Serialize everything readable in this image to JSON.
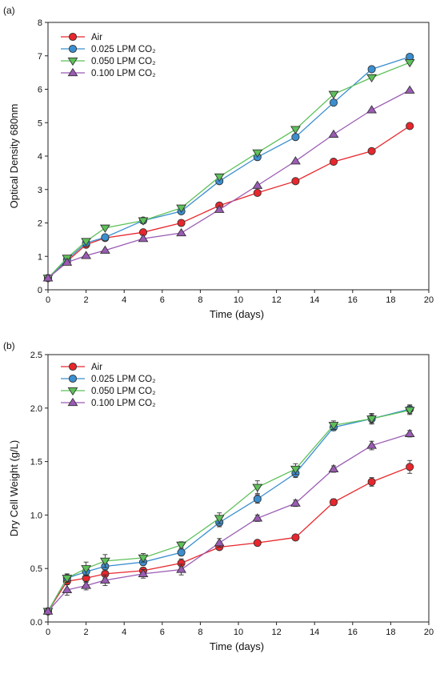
{
  "chart_data": [
    {
      "panel_label": "(a)",
      "type": "line",
      "xlabel": "Time (days)",
      "ylabel": "Optical Density 680nm",
      "xlim": [
        0,
        20
      ],
      "ylim": [
        0,
        8
      ],
      "x_ticks": [
        0,
        2,
        4,
        6,
        8,
        10,
        12,
        14,
        16,
        18,
        20
      ],
      "y_ticks": [
        0,
        1,
        2,
        3,
        4,
        5,
        6,
        7,
        8
      ],
      "grid": false,
      "legend_position": "top-left",
      "x": [
        0,
        1,
        2,
        3,
        5,
        7,
        9,
        11,
        13,
        15,
        17,
        19
      ],
      "series": [
        {
          "name": "Air",
          "color": "#e8262c",
          "marker": "circle",
          "values": [
            0.35,
            0.85,
            1.35,
            1.55,
            1.72,
            2.0,
            2.52,
            2.9,
            3.25,
            3.83,
            4.15,
            4.9
          ]
        },
        {
          "name": "0.025 LPM CO₂",
          "color": "#3b8fd0",
          "marker": "circle",
          "values": [
            0.35,
            0.9,
            1.4,
            1.57,
            2.07,
            2.35,
            3.25,
            3.97,
            4.57,
            5.6,
            6.6,
            6.97
          ]
        },
        {
          "name": "0.050 LPM CO₂",
          "color": "#5ec15a",
          "marker": "triangle-down",
          "values": [
            0.35,
            0.95,
            1.45,
            1.85,
            2.07,
            2.45,
            3.38,
            4.1,
            4.8,
            5.85,
            6.35,
            6.8
          ]
        },
        {
          "name": "0.100 LPM CO₂",
          "color": "#9a5bb4",
          "marker": "triangle-up",
          "values": [
            0.35,
            0.82,
            1.02,
            1.18,
            1.53,
            1.7,
            2.4,
            3.12,
            3.85,
            4.65,
            5.38,
            5.97
          ]
        }
      ]
    },
    {
      "panel_label": "(b)",
      "type": "line",
      "xlabel": "Time (days)",
      "ylabel": "Dry Cell Weight (g/L)",
      "xlim": [
        0,
        20
      ],
      "ylim": [
        0,
        2.5
      ],
      "x_ticks": [
        0,
        2,
        4,
        6,
        8,
        10,
        12,
        14,
        16,
        18,
        20
      ],
      "y_ticks": [
        0.0,
        0.5,
        1.0,
        1.5,
        2.0,
        2.5
      ],
      "y_tick_labels": [
        "0.0",
        "0.5",
        "1.0",
        "1.5",
        "2.0",
        "2.5"
      ],
      "grid": false,
      "legend_position": "top-left",
      "error_bars": true,
      "x": [
        0,
        1,
        2,
        3,
        5,
        7,
        9,
        11,
        13,
        15,
        17,
        19
      ],
      "series": [
        {
          "name": "Air",
          "color": "#e8262c",
          "marker": "circle",
          "values": [
            0.1,
            0.38,
            0.41,
            0.45,
            0.48,
            0.55,
            0.7,
            0.74,
            0.79,
            1.12,
            1.31,
            1.45
          ],
          "errors": [
            0.02,
            0.03,
            0.04,
            0.04,
            0.03,
            0.04,
            0.02,
            0.02,
            0.02,
            0.03,
            0.04,
            0.06
          ]
        },
        {
          "name": "0.025 LPM CO₂",
          "color": "#3b8fd0",
          "marker": "circle",
          "values": [
            0.1,
            0.41,
            0.47,
            0.52,
            0.56,
            0.65,
            0.93,
            1.15,
            1.39,
            1.82,
            1.9,
            1.99
          ],
          "errors": [
            0.02,
            0.03,
            0.04,
            0.04,
            0.03,
            0.03,
            0.04,
            0.04,
            0.04,
            0.03,
            0.04,
            0.04
          ]
        },
        {
          "name": "0.050 LPM CO₂",
          "color": "#5ec15a",
          "marker": "triangle-down",
          "values": [
            0.1,
            0.41,
            0.5,
            0.57,
            0.6,
            0.72,
            0.97,
            1.26,
            1.43,
            1.84,
            1.9,
            1.98
          ],
          "errors": [
            0.02,
            0.04,
            0.06,
            0.06,
            0.04,
            0.03,
            0.05,
            0.06,
            0.05,
            0.04,
            0.05,
            0.04
          ]
        },
        {
          "name": "0.100 LPM CO₂",
          "color": "#9a5bb4",
          "marker": "triangle-up",
          "values": [
            0.1,
            0.3,
            0.34,
            0.39,
            0.45,
            0.49,
            0.74,
            0.97,
            1.11,
            1.43,
            1.65,
            1.76
          ],
          "errors": [
            0.02,
            0.05,
            0.04,
            0.05,
            0.04,
            0.05,
            0.04,
            0.03,
            0.03,
            0.03,
            0.04,
            0.03
          ]
        }
      ]
    }
  ]
}
